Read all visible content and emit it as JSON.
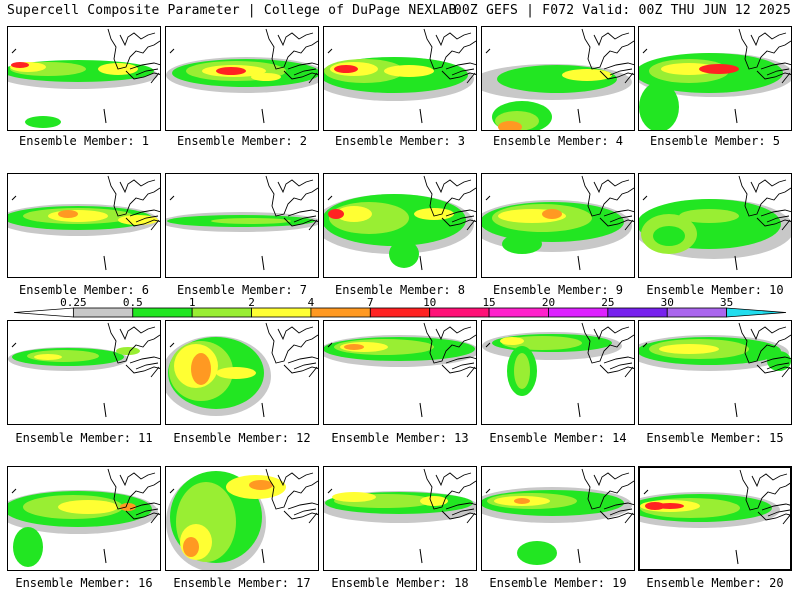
{
  "header": {
    "left": "Supercell Composite Parameter | College of DuPage NEXLAB",
    "right": "00Z GEFS | F072 Valid: 00Z THU JUN 12 2025"
  },
  "members": [
    {
      "label": "Ensemble Member: 1"
    },
    {
      "label": "Ensemble Member: 2"
    },
    {
      "label": "Ensemble Member: 3"
    },
    {
      "label": "Ensemble Member: 4"
    },
    {
      "label": "Ensemble Member: 5"
    },
    {
      "label": "Ensemble Member: 6"
    },
    {
      "label": "Ensemble Member: 7"
    },
    {
      "label": "Ensemble Member: 8"
    },
    {
      "label": "Ensemble Member: 9"
    },
    {
      "label": "Ensemble Member: 10"
    },
    {
      "label": "Ensemble Member: 11"
    },
    {
      "label": "Ensemble Member: 12"
    },
    {
      "label": "Ensemble Member: 13"
    },
    {
      "label": "Ensemble Member: 14"
    },
    {
      "label": "Ensemble Member: 15"
    },
    {
      "label": "Ensemble Member: 16"
    },
    {
      "label": "Ensemble Member: 17"
    },
    {
      "label": "Ensemble Member: 18"
    },
    {
      "label": "Ensemble Member: 19"
    },
    {
      "label": "Ensemble Member: 20"
    }
  ],
  "colorbar": {
    "levels": [
      "0.25",
      "0.5",
      "1",
      "2",
      "4",
      "7",
      "10",
      "15",
      "20",
      "25",
      "30",
      "35"
    ],
    "colors": [
      "#c8c8c8",
      "#22e622",
      "#99ee33",
      "#ffff33",
      "#ff9922",
      "#ff2222",
      "#ff1177",
      "#ff22cc",
      "#dd22ff",
      "#7722ee",
      "#aa66ee",
      "#22ddee"
    ]
  },
  "colors": {
    "gray": "#c8c8c8",
    "green": "#22e622",
    "lightgreen": "#99ee33",
    "yellow": "#ffff33",
    "orange": "#ff9922",
    "red": "#ff2222"
  }
}
